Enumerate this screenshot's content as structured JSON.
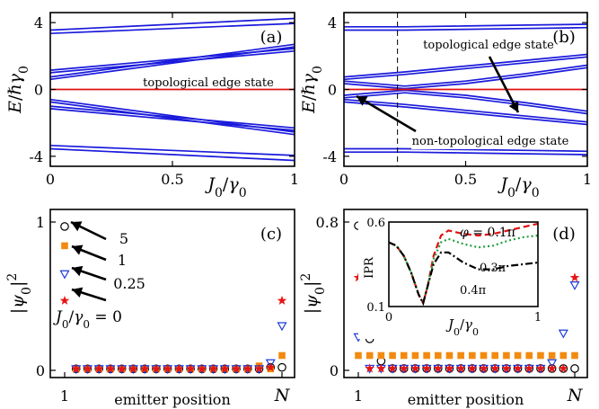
{
  "colors": {
    "band": "#1a1adc",
    "edge_line": "#e01010",
    "orange": "#f28a0f",
    "blue_triangle": "#1a3adc",
    "red_star": "#e81414",
    "green": "#1f9e3a",
    "black": "#000000"
  },
  "chart_data": [
    {
      "id": "a",
      "type": "line",
      "panel_label": "(a)",
      "xlabel": "J_0/γ_0",
      "ylabel": "E/ℏγ_0",
      "xlim": [
        0,
        1
      ],
      "ylim": [
        -4.6,
        4.6
      ],
      "xticks": [
        "0",
        "0.5",
        "1"
      ],
      "yticks": [
        "4",
        "0",
        "-4"
      ],
      "annotations": [
        "topological edge state"
      ],
      "series": [
        {
          "role": "bands",
          "x": [
            0,
            1
          ],
          "lines": [
            [
              3.35,
              3.95
            ],
            [
              3.55,
              4.25
            ],
            [
              1.0,
              2.3
            ],
            [
              1.15,
              2.45
            ],
            [
              0.6,
              2.55
            ],
            [
              0.75,
              2.7
            ],
            [
              -0.6,
              -2.55
            ],
            [
              -0.75,
              -2.7
            ],
            [
              -1.0,
              -2.3
            ],
            [
              -1.15,
              -2.45
            ],
            [
              -3.35,
              -3.95
            ],
            [
              -3.55,
              -4.25
            ]
          ]
        },
        {
          "role": "edge",
          "x": [
            0,
            1
          ],
          "y": [
            0,
            0
          ]
        }
      ]
    },
    {
      "id": "b",
      "type": "line",
      "panel_label": "(b)",
      "xlabel": "J_0/γ_0",
      "ylabel": "E/ℏγ_0",
      "xlim": [
        0,
        1
      ],
      "ylim": [
        -4.6,
        4.6
      ],
      "xticks": [
        "0",
        "0.5",
        "1"
      ],
      "yticks": [
        "4",
        "0",
        "-4"
      ],
      "dashed_x": 0.22,
      "annotations": [
        "topological edge state",
        "non-topological edge state"
      ],
      "series": [
        {
          "role": "bands",
          "x": [
            0,
            0.25,
            0.5,
            0.75,
            1
          ],
          "lines": [
            [
              3.55,
              3.55,
              3.6,
              3.65,
              3.7
            ],
            [
              3.75,
              3.75,
              3.8,
              3.85,
              3.9
            ],
            [
              0.6,
              0.9,
              1.25,
              1.6,
              1.95
            ],
            [
              0.75,
              1.05,
              1.4,
              1.75,
              2.1
            ],
            [
              0.35,
              0.05,
              0.35,
              0.8,
              1.3
            ],
            [
              0.5,
              0.2,
              0.5,
              0.95,
              1.45
            ],
            [
              -0.35,
              -0.05,
              -0.35,
              -0.8,
              -1.3
            ],
            [
              -0.5,
              -0.2,
              -0.5,
              -0.95,
              -1.45
            ],
            [
              -0.6,
              -0.9,
              -1.25,
              -1.6,
              -1.95
            ],
            [
              -0.75,
              -1.05,
              -1.4,
              -1.75,
              -2.1
            ],
            [
              -3.55,
              -3.55,
              -3.6,
              -3.65,
              -3.7
            ],
            [
              -3.75,
              -3.75,
              -3.8,
              -3.85,
              -3.9
            ]
          ]
        },
        {
          "role": "edge",
          "x": [
            0,
            1
          ],
          "y": [
            0,
            0
          ]
        }
      ]
    },
    {
      "id": "c",
      "type": "scatter",
      "panel_label": "(c)",
      "xlabel": "emitter position",
      "ylabel": "|ψ_0|²",
      "ylim": [
        0,
        1
      ],
      "yticks": [
        "1",
        "0"
      ],
      "xtick_first": "1",
      "xtick_last": "N",
      "n_sites": 20,
      "legend_label": "J_0/γ_0 = 0",
      "arrow_labels": [
        "5",
        "1",
        "0.25"
      ],
      "series": [
        {
          "name": "5",
          "marker": "circle",
          "color_key": "black",
          "values": [
            0.97,
            0.01,
            0.01,
            0.01,
            0.01,
            0.01,
            0.01,
            0.01,
            0.01,
            0.01,
            0.01,
            0.01,
            0.01,
            0.01,
            0.01,
            0.01,
            0.01,
            0.01,
            0.02,
            0.02
          ]
        },
        {
          "name": "1",
          "marker": "square",
          "color_key": "orange",
          "values": [
            0.84,
            0.01,
            0.01,
            0.01,
            0.01,
            0.01,
            0.01,
            0.01,
            0.01,
            0.01,
            0.01,
            0.01,
            0.01,
            0.01,
            0.01,
            0.01,
            0.01,
            0.03,
            0.01,
            0.1
          ]
        },
        {
          "name": "0.25",
          "marker": "triangle",
          "color_key": "blue_triangle",
          "values": [
            0.65,
            0.01,
            0.01,
            0.01,
            0.01,
            0.01,
            0.01,
            0.01,
            0.01,
            0.01,
            0.01,
            0.01,
            0.01,
            0.01,
            0.01,
            0.01,
            0.01,
            0.01,
            0.05,
            0.3
          ]
        },
        {
          "name": "J_0/γ_0 = 0",
          "marker": "star",
          "color_key": "red_star",
          "values": [
            0.47,
            0.01,
            0.01,
            0.01,
            0.01,
            0.01,
            0.01,
            0.01,
            0.01,
            0.01,
            0.01,
            0.01,
            0.01,
            0.01,
            0.01,
            0.01,
            0.01,
            0.01,
            0.02,
            0.47
          ]
        }
      ]
    },
    {
      "id": "d",
      "type": "scatter",
      "panel_label": "(d)",
      "xlabel": "emitter position",
      "ylabel": "|ψ_0|²",
      "ylim": [
        0,
        0.8
      ],
      "yticks": [
        "0.8",
        "0"
      ],
      "xtick_first": "1",
      "xtick_last": "N",
      "n_sites": 20,
      "series": [
        {
          "marker": "circle",
          "color_key": "black",
          "values": [
            0.78,
            0.17,
            0.05,
            0.01,
            0.01,
            0.01,
            0.01,
            0.01,
            0.01,
            0.01,
            0.01,
            0.01,
            0.01,
            0.01,
            0.01,
            0.01,
            0.01,
            0.01,
            0.01,
            0.01
          ]
        },
        {
          "marker": "square",
          "color_key": "orange",
          "values": [
            0.08,
            0.08,
            0.08,
            0.08,
            0.08,
            0.08,
            0.08,
            0.08,
            0.08,
            0.08,
            0.08,
            0.08,
            0.08,
            0.08,
            0.08,
            0.08,
            0.08,
            0.08,
            0.08,
            0.08
          ]
        },
        {
          "marker": "triangle",
          "color_key": "blue_triangle",
          "values": [
            0.18,
            0.01,
            0.01,
            0.01,
            0.01,
            0.01,
            0.01,
            0.01,
            0.01,
            0.01,
            0.01,
            0.01,
            0.01,
            0.01,
            0.01,
            0.01,
            0.01,
            0.04,
            0.2,
            0.46
          ]
        },
        {
          "marker": "star",
          "color_key": "red_star",
          "values": [
            0.5,
            0.01,
            0.01,
            0.01,
            0.01,
            0.01,
            0.01,
            0.01,
            0.01,
            0.01,
            0.01,
            0.01,
            0.01,
            0.01,
            0.01,
            0.01,
            0.01,
            0.01,
            0.01,
            0.5
          ]
        }
      ]
    },
    {
      "id": "d-inset",
      "type": "line",
      "xlabel": "J_0/γ_0",
      "ylabel": "IPR",
      "xlim": [
        0,
        1
      ],
      "ylim": [
        0.1,
        0.6
      ],
      "xticks": [
        "0",
        "1"
      ],
      "yticks": [
        "0.6",
        "0.1"
      ],
      "series": [
        {
          "name": "φ = 0.1π",
          "label": "φ = 0.1π",
          "color_key": "edge_line",
          "x": [
            0,
            0.05,
            0.1,
            0.15,
            0.2,
            0.23,
            0.26,
            0.3,
            0.35,
            0.4,
            0.5,
            0.6,
            0.7,
            0.8,
            0.9,
            1.0
          ],
          "y": [
            0.48,
            0.46,
            0.4,
            0.3,
            0.17,
            0.12,
            0.22,
            0.4,
            0.52,
            0.55,
            0.53,
            0.52,
            0.53,
            0.55,
            0.57,
            0.59
          ]
        },
        {
          "name": "0.3π",
          "label": "0.3π",
          "color_key": "green",
          "x": [
            0,
            0.05,
            0.1,
            0.15,
            0.2,
            0.23,
            0.26,
            0.3,
            0.35,
            0.4,
            0.5,
            0.6,
            0.7,
            0.8,
            0.9,
            1.0
          ],
          "y": [
            0.48,
            0.46,
            0.4,
            0.3,
            0.17,
            0.12,
            0.22,
            0.38,
            0.48,
            0.5,
            0.47,
            0.45,
            0.46,
            0.49,
            0.51,
            0.52
          ]
        },
        {
          "name": "0.4π",
          "label": "0.4π",
          "color_key": "black",
          "x": [
            0,
            0.05,
            0.1,
            0.15,
            0.2,
            0.23,
            0.26,
            0.3,
            0.35,
            0.4,
            0.5,
            0.6,
            0.7,
            0.8,
            0.9,
            1.0
          ],
          "y": [
            0.48,
            0.46,
            0.4,
            0.3,
            0.17,
            0.12,
            0.22,
            0.35,
            0.42,
            0.42,
            0.36,
            0.32,
            0.32,
            0.34,
            0.35,
            0.36
          ]
        }
      ]
    }
  ]
}
